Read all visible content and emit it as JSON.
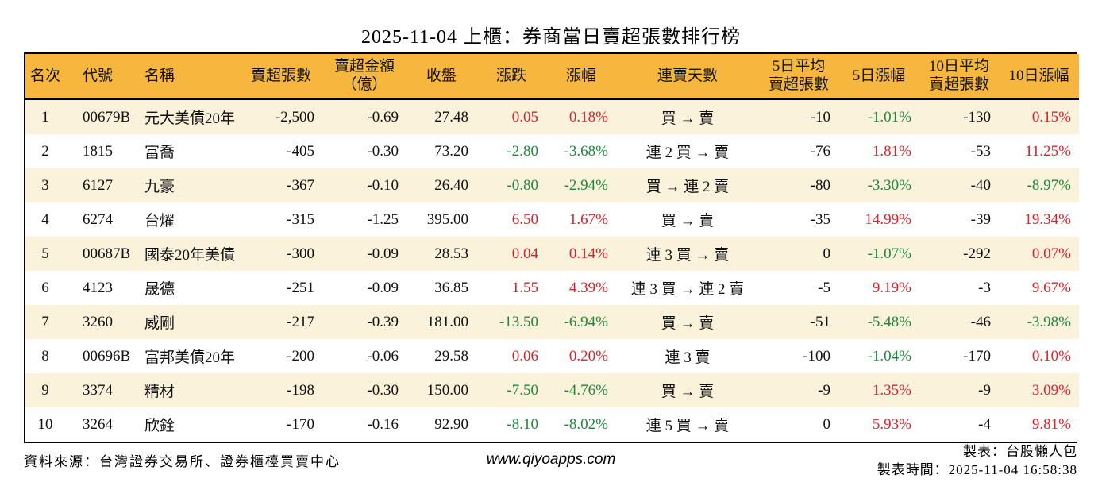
{
  "page": {
    "title": "2025-11-04 上櫃：券商當日賣超張數排行榜"
  },
  "colors": {
    "header_bg": "#f7b73e",
    "row_stripe_bg": "#fbf2dc",
    "row_plain_bg": "#ffffff",
    "up_red": "#d7232c",
    "down_green": "#1e883c",
    "border": "#000000"
  },
  "table": {
    "columns": [
      {
        "key": "rank",
        "label": "名次"
      },
      {
        "key": "code",
        "label": "代號"
      },
      {
        "key": "name",
        "label": "名稱"
      },
      {
        "key": "sell_volume",
        "label": "賣超張數"
      },
      {
        "key": "sell_amount",
        "label": "賣超金額\n（億）"
      },
      {
        "key": "close",
        "label": "收盤"
      },
      {
        "key": "change",
        "label": "漲跌"
      },
      {
        "key": "change_pct",
        "label": "漲幅"
      },
      {
        "key": "streak",
        "label": "連賣天數"
      },
      {
        "key": "avg5",
        "label": "5日平均\n賣超張數"
      },
      {
        "key": "pct5",
        "label": "5日漲幅"
      },
      {
        "key": "avg10",
        "label": "10日平均\n賣超張數"
      },
      {
        "key": "pct10",
        "label": "10日漲幅"
      }
    ],
    "rows": [
      [
        {
          "v": "1"
        },
        {
          "v": "00679B"
        },
        {
          "v": "元大美債20年"
        },
        {
          "v": "-2,500"
        },
        {
          "v": "-0.69"
        },
        {
          "v": "27.48"
        },
        {
          "v": "0.05",
          "tone": "up"
        },
        {
          "v": "0.18%",
          "tone": "up"
        },
        {
          "v": "買 → 賣"
        },
        {
          "v": "-10"
        },
        {
          "v": "-1.01%",
          "tone": "down"
        },
        {
          "v": "-130"
        },
        {
          "v": "0.15%",
          "tone": "up"
        }
      ],
      [
        {
          "v": "2"
        },
        {
          "v": "1815"
        },
        {
          "v": "富喬"
        },
        {
          "v": "-405"
        },
        {
          "v": "-0.30"
        },
        {
          "v": "73.20"
        },
        {
          "v": "-2.80",
          "tone": "down"
        },
        {
          "v": "-3.68%",
          "tone": "down"
        },
        {
          "v": "連 2 買 → 賣"
        },
        {
          "v": "-76"
        },
        {
          "v": "1.81%",
          "tone": "up"
        },
        {
          "v": "-53"
        },
        {
          "v": "11.25%",
          "tone": "up"
        }
      ],
      [
        {
          "v": "3"
        },
        {
          "v": "6127"
        },
        {
          "v": "九豪"
        },
        {
          "v": "-367"
        },
        {
          "v": "-0.10"
        },
        {
          "v": "26.40"
        },
        {
          "v": "-0.80",
          "tone": "down"
        },
        {
          "v": "-2.94%",
          "tone": "down"
        },
        {
          "v": "買 → 連 2 賣"
        },
        {
          "v": "-80"
        },
        {
          "v": "-3.30%",
          "tone": "down"
        },
        {
          "v": "-40"
        },
        {
          "v": "-8.97%",
          "tone": "down"
        }
      ],
      [
        {
          "v": "4"
        },
        {
          "v": "6274"
        },
        {
          "v": "台燿"
        },
        {
          "v": "-315"
        },
        {
          "v": "-1.25"
        },
        {
          "v": "395.00"
        },
        {
          "v": "6.50",
          "tone": "up"
        },
        {
          "v": "1.67%",
          "tone": "up"
        },
        {
          "v": "買 → 賣"
        },
        {
          "v": "-35"
        },
        {
          "v": "14.99%",
          "tone": "up"
        },
        {
          "v": "-39"
        },
        {
          "v": "19.34%",
          "tone": "up"
        }
      ],
      [
        {
          "v": "5"
        },
        {
          "v": "00687B"
        },
        {
          "v": "國泰20年美債"
        },
        {
          "v": "-300"
        },
        {
          "v": "-0.09"
        },
        {
          "v": "28.53"
        },
        {
          "v": "0.04",
          "tone": "up"
        },
        {
          "v": "0.14%",
          "tone": "up"
        },
        {
          "v": "連 3 買 → 賣"
        },
        {
          "v": "0"
        },
        {
          "v": "-1.07%",
          "tone": "down"
        },
        {
          "v": "-292"
        },
        {
          "v": "0.07%",
          "tone": "up"
        }
      ],
      [
        {
          "v": "6"
        },
        {
          "v": "4123"
        },
        {
          "v": "晟德"
        },
        {
          "v": "-251"
        },
        {
          "v": "-0.09"
        },
        {
          "v": "36.85"
        },
        {
          "v": "1.55",
          "tone": "up"
        },
        {
          "v": "4.39%",
          "tone": "up"
        },
        {
          "v": "連 3 買 → 連 2 賣"
        },
        {
          "v": "-5"
        },
        {
          "v": "9.19%",
          "tone": "up"
        },
        {
          "v": "-3"
        },
        {
          "v": "9.67%",
          "tone": "up"
        }
      ],
      [
        {
          "v": "7"
        },
        {
          "v": "3260"
        },
        {
          "v": "威剛"
        },
        {
          "v": "-217"
        },
        {
          "v": "-0.39"
        },
        {
          "v": "181.00"
        },
        {
          "v": "-13.50",
          "tone": "down"
        },
        {
          "v": "-6.94%",
          "tone": "down"
        },
        {
          "v": "買 → 賣"
        },
        {
          "v": "-51"
        },
        {
          "v": "-5.48%",
          "tone": "down"
        },
        {
          "v": "-46"
        },
        {
          "v": "-3.98%",
          "tone": "down"
        }
      ],
      [
        {
          "v": "8"
        },
        {
          "v": "00696B"
        },
        {
          "v": "富邦美債20年"
        },
        {
          "v": "-200"
        },
        {
          "v": "-0.06"
        },
        {
          "v": "29.58"
        },
        {
          "v": "0.06",
          "tone": "up"
        },
        {
          "v": "0.20%",
          "tone": "up"
        },
        {
          "v": "連 3 賣"
        },
        {
          "v": "-100"
        },
        {
          "v": "-1.04%",
          "tone": "down"
        },
        {
          "v": "-170"
        },
        {
          "v": "0.10%",
          "tone": "up"
        }
      ],
      [
        {
          "v": "9"
        },
        {
          "v": "3374"
        },
        {
          "v": "精材"
        },
        {
          "v": "-198"
        },
        {
          "v": "-0.30"
        },
        {
          "v": "150.00"
        },
        {
          "v": "-7.50",
          "tone": "down"
        },
        {
          "v": "-4.76%",
          "tone": "down"
        },
        {
          "v": "買 → 賣"
        },
        {
          "v": "-9"
        },
        {
          "v": "1.35%",
          "tone": "up"
        },
        {
          "v": "-9"
        },
        {
          "v": "3.09%",
          "tone": "up"
        }
      ],
      [
        {
          "v": "10"
        },
        {
          "v": "3264"
        },
        {
          "v": "欣銓"
        },
        {
          "v": "-170"
        },
        {
          "v": "-0.16"
        },
        {
          "v": "92.90"
        },
        {
          "v": "-8.10",
          "tone": "down"
        },
        {
          "v": "-8.02%",
          "tone": "down"
        },
        {
          "v": "連 5 買 → 賣"
        },
        {
          "v": "0"
        },
        {
          "v": "5.93%",
          "tone": "up"
        },
        {
          "v": "-4"
        },
        {
          "v": "9.81%",
          "tone": "up"
        }
      ]
    ]
  },
  "footer": {
    "source": "資料來源：台灣證券交易所、證券櫃檯買賣中心",
    "site": "www.qiyoapps.com",
    "maker": "製表：台股懶人包",
    "made_at": "製表時間：2025-11-04 16:58:38"
  }
}
